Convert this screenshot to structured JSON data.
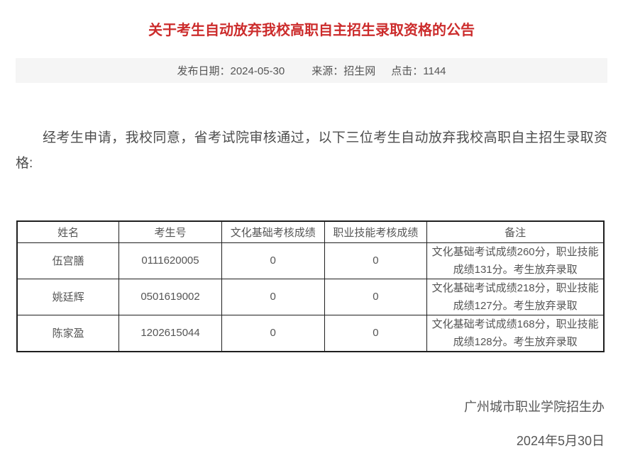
{
  "page": {
    "title": "关于考生自动放弃我校高职自主招生录取资格的公告",
    "meta": {
      "publish_date_label": "发布日期：",
      "publish_date": "2024-05-30",
      "source_label": "来源：",
      "source": "招生网",
      "hits_label": "点击：",
      "hits": "1144"
    },
    "body_paragraph": "经考生申请，我校同意，省考试院审核通过，以下三位考生自动放弃我校高职自主招生录取资格:",
    "table": {
      "headers": [
        "姓名",
        "考生号",
        "文化基础考核成绩",
        "职业技能考核成绩",
        "备注"
      ],
      "rows": [
        {
          "name": "伍宫膳",
          "exam_id": "0111620005",
          "culture_score": "0",
          "skill_score": "0",
          "remark": "文化基础考试成绩260分，职业技能成绩131分。考生放弃录取"
        },
        {
          "name": "姚廷辉",
          "exam_id": "0501619002",
          "culture_score": "0",
          "skill_score": "0",
          "remark": "文化基础考试成绩218分，职业技能成绩127分。考生放弃录取"
        },
        {
          "name": "陈家盈",
          "exam_id": "1202615044",
          "culture_score": "0",
          "skill_score": "0",
          "remark": "文化基础考试成绩168分，职业技能成绩128分。考生放弃录取"
        }
      ]
    },
    "footer": {
      "signature": "广州城市职业学院招生办",
      "date": "2024年5月30日"
    },
    "colors": {
      "title_red": "#cc2c2c",
      "meta_bar_bg": "#f5f5f5",
      "text_gray": "#555555",
      "table_border": "#1f1f1f"
    }
  }
}
